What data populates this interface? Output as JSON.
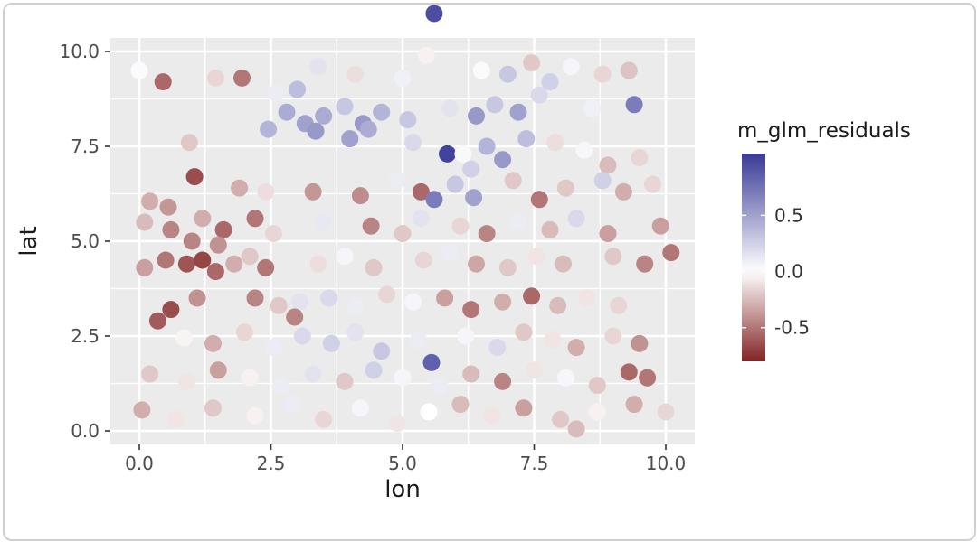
{
  "figure": {
    "background": "#ffffff",
    "border_color": "#cfcfcf"
  },
  "chart_data": {
    "type": "scatter",
    "title": "",
    "xlabel": "lon",
    "ylabel": "lat",
    "x_ticks": [
      0.0,
      2.5,
      5.0,
      7.5,
      10.0
    ],
    "x_tick_labels": [
      "0.0",
      "2.5",
      "5.0",
      "7.5",
      "10.0"
    ],
    "y_ticks": [
      0.0,
      2.5,
      5.0,
      7.5,
      10.0
    ],
    "y_tick_labels": [
      "0.0",
      "2.5",
      "5.0",
      "7.5",
      "10.0"
    ],
    "x_minor_ticks": [
      1.25,
      3.75,
      6.25,
      8.75
    ],
    "y_minor_ticks": [
      1.25,
      3.75,
      6.25,
      8.75
    ],
    "xlim": [
      -0.55,
      10.55
    ],
    "ylim": [
      -0.55,
      10.55
    ],
    "panel_background": "#EBEBEB",
    "grid_color": "#FFFFFF",
    "tick_color": "#333333",
    "tick_label_color": "#4d4d4d",
    "axis_title_color": "#1a1a1a",
    "legend": {
      "title": "m_glm_residuals",
      "tick_values": [
        0.5,
        0.0,
        -0.5
      ],
      "tick_labels": [
        "0.5",
        "0.0",
        "-0.5"
      ],
      "domain": [
        -0.8,
        1.05
      ],
      "low_color": "#832424",
      "mid_color": "#FFFFFF",
      "high_color": "#3A3A98"
    },
    "point_radius": 9.5,
    "points": [
      [
        5.6,
        11.0,
        0.95
      ],
      [
        0.0,
        9.5,
        0.02
      ],
      [
        0.45,
        9.2,
        -0.55
      ],
      [
        1.45,
        9.3,
        -0.15
      ],
      [
        1.95,
        9.3,
        -0.5
      ],
      [
        3.4,
        9.6,
        0.15
      ],
      [
        4.1,
        9.4,
        -0.12
      ],
      [
        5.0,
        9.3,
        0.08
      ],
      [
        5.45,
        9.9,
        -0.05
      ],
      [
        6.5,
        9.5,
        0.02
      ],
      [
        7.0,
        9.4,
        0.3
      ],
      [
        7.45,
        9.7,
        -0.2
      ],
      [
        7.8,
        9.2,
        0.25
      ],
      [
        8.2,
        9.6,
        0.05
      ],
      [
        8.8,
        9.4,
        -0.15
      ],
      [
        9.3,
        9.5,
        -0.22
      ],
      [
        2.6,
        8.9,
        0.1
      ],
      [
        3.0,
        9.0,
        0.35
      ],
      [
        2.8,
        8.4,
        0.45
      ],
      [
        3.15,
        8.1,
        0.5
      ],
      [
        3.5,
        8.3,
        0.45
      ],
      [
        3.9,
        8.55,
        0.3
      ],
      [
        4.25,
        8.1,
        0.55
      ],
      [
        4.6,
        8.4,
        0.4
      ],
      [
        5.1,
        8.2,
        0.3
      ],
      [
        5.9,
        8.5,
        0.15
      ],
      [
        6.4,
        8.3,
        0.55
      ],
      [
        6.75,
        8.6,
        0.3
      ],
      [
        7.2,
        8.4,
        0.5
      ],
      [
        7.6,
        8.85,
        0.2
      ],
      [
        8.6,
        8.5,
        0.08
      ],
      [
        9.4,
        8.6,
        0.7
      ],
      [
        2.45,
        7.95,
        0.4
      ],
      [
        0.95,
        7.6,
        -0.2
      ],
      [
        3.35,
        7.9,
        0.55
      ],
      [
        4.0,
        7.7,
        0.5
      ],
      [
        4.35,
        7.95,
        0.45
      ],
      [
        5.2,
        7.6,
        0.2
      ],
      [
        5.85,
        7.3,
        1.0
      ],
      [
        6.15,
        7.3,
        0.03
      ],
      [
        6.6,
        7.5,
        0.4
      ],
      [
        6.9,
        7.15,
        0.55
      ],
      [
        7.35,
        7.7,
        0.35
      ],
      [
        7.9,
        7.6,
        -0.12
      ],
      [
        8.45,
        7.4,
        0.04
      ],
      [
        8.9,
        7.0,
        -0.25
      ],
      [
        9.5,
        7.2,
        -0.15
      ],
      [
        6.3,
        6.9,
        0.25
      ],
      [
        1.05,
        6.7,
        -0.65
      ],
      [
        0.2,
        6.05,
        -0.3
      ],
      [
        0.55,
        5.9,
        -0.38
      ],
      [
        1.9,
        6.4,
        -0.3
      ],
      [
        2.4,
        6.3,
        -0.12
      ],
      [
        3.3,
        6.3,
        -0.38
      ],
      [
        4.2,
        6.2,
        -0.42
      ],
      [
        4.9,
        6.6,
        0.1
      ],
      [
        5.35,
        6.3,
        -0.55
      ],
      [
        5.6,
        6.1,
        0.7
      ],
      [
        6.0,
        6.5,
        0.3
      ],
      [
        6.35,
        6.15,
        0.5
      ],
      [
        7.1,
        6.6,
        -0.2
      ],
      [
        7.6,
        6.1,
        -0.5
      ],
      [
        8.1,
        6.4,
        -0.2
      ],
      [
        8.8,
        6.6,
        0.25
      ],
      [
        9.2,
        6.3,
        -0.3
      ],
      [
        9.75,
        6.5,
        -0.15
      ],
      [
        0.1,
        5.5,
        -0.25
      ],
      [
        0.6,
        5.3,
        -0.45
      ],
      [
        1.2,
        5.6,
        -0.3
      ],
      [
        1.6,
        5.3,
        -0.55
      ],
      [
        2.2,
        5.6,
        -0.5
      ],
      [
        2.55,
        5.2,
        -0.15
      ],
      [
        3.5,
        5.5,
        0.12
      ],
      [
        4.4,
        5.4,
        -0.45
      ],
      [
        5.0,
        5.2,
        -0.2
      ],
      [
        5.35,
        5.6,
        0.15
      ],
      [
        6.1,
        5.4,
        -0.15
      ],
      [
        6.6,
        5.2,
        -0.45
      ],
      [
        7.2,
        5.5,
        0.1
      ],
      [
        7.8,
        5.3,
        -0.25
      ],
      [
        8.3,
        5.6,
        0.2
      ],
      [
        8.9,
        5.2,
        -0.35
      ],
      [
        9.9,
        5.4,
        -0.35
      ],
      [
        10.1,
        4.7,
        -0.5
      ],
      [
        0.1,
        4.3,
        -0.35
      ],
      [
        0.5,
        4.5,
        -0.5
      ],
      [
        0.9,
        4.4,
        -0.62
      ],
      [
        1.2,
        4.5,
        -0.68
      ],
      [
        1.45,
        4.2,
        -0.55
      ],
      [
        1.8,
        4.4,
        -0.3
      ],
      [
        2.1,
        4.6,
        -0.2
      ],
      [
        1.0,
        5.0,
        -0.45
      ],
      [
        1.5,
        4.9,
        -0.4
      ],
      [
        2.4,
        4.3,
        -0.5
      ],
      [
        3.4,
        4.4,
        -0.12
      ],
      [
        3.9,
        4.6,
        0.05
      ],
      [
        4.45,
        4.3,
        -0.2
      ],
      [
        5.4,
        4.5,
        -0.15
      ],
      [
        5.9,
        4.7,
        0.1
      ],
      [
        6.4,
        4.4,
        -0.32
      ],
      [
        7.0,
        4.3,
        -0.2
      ],
      [
        7.55,
        4.6,
        -0.1
      ],
      [
        8.05,
        4.4,
        -0.25
      ],
      [
        9.0,
        4.6,
        -0.2
      ],
      [
        9.6,
        4.4,
        -0.45
      ],
      [
        0.6,
        3.2,
        -0.65
      ],
      [
        1.1,
        3.5,
        -0.4
      ],
      [
        2.2,
        3.5,
        -0.45
      ],
      [
        2.65,
        3.3,
        -0.2
      ],
      [
        3.05,
        3.4,
        0.15
      ],
      [
        3.6,
        3.5,
        0.2
      ],
      [
        4.1,
        3.3,
        0.1
      ],
      [
        4.7,
        3.6,
        -0.15
      ],
      [
        5.2,
        3.4,
        0.05
      ],
      [
        5.8,
        3.5,
        -0.35
      ],
      [
        6.3,
        3.2,
        -0.5
      ],
      [
        6.9,
        3.4,
        -0.3
      ],
      [
        7.45,
        3.55,
        -0.55
      ],
      [
        7.95,
        3.3,
        -0.25
      ],
      [
        8.5,
        3.5,
        -0.1
      ],
      [
        9.1,
        3.3,
        -0.15
      ],
      [
        2.95,
        3.0,
        -0.45
      ],
      [
        0.35,
        2.9,
        -0.6
      ],
      [
        0.85,
        2.45,
        -0.04
      ],
      [
        1.4,
        2.3,
        -0.3
      ],
      [
        2.0,
        2.6,
        -0.15
      ],
      [
        2.55,
        2.2,
        0.1
      ],
      [
        3.1,
        2.5,
        0.2
      ],
      [
        3.65,
        2.3,
        0.25
      ],
      [
        4.1,
        2.6,
        0.15
      ],
      [
        4.6,
        2.1,
        0.3
      ],
      [
        5.3,
        2.4,
        0.1
      ],
      [
        5.55,
        1.8,
        0.85
      ],
      [
        6.2,
        2.5,
        0.05
      ],
      [
        6.8,
        2.2,
        0.2
      ],
      [
        7.3,
        2.6,
        -0.2
      ],
      [
        7.85,
        2.4,
        -0.1
      ],
      [
        8.3,
        2.2,
        -0.3
      ],
      [
        9.0,
        2.5,
        -0.15
      ],
      [
        9.5,
        2.3,
        -0.4
      ],
      [
        0.2,
        1.5,
        -0.2
      ],
      [
        0.9,
        1.3,
        -0.1
      ],
      [
        1.5,
        1.6,
        -0.35
      ],
      [
        2.1,
        1.4,
        -0.05
      ],
      [
        2.7,
        1.2,
        0.1
      ],
      [
        3.3,
        1.5,
        0.15
      ],
      [
        3.9,
        1.3,
        -0.2
      ],
      [
        4.45,
        1.6,
        0.25
      ],
      [
        5.0,
        1.4,
        0.05
      ],
      [
        5.7,
        1.2,
        0.1
      ],
      [
        6.3,
        1.5,
        -0.25
      ],
      [
        6.9,
        1.3,
        -0.45
      ],
      [
        7.5,
        1.6,
        -0.1
      ],
      [
        8.1,
        1.4,
        0.04
      ],
      [
        8.7,
        1.2,
        -0.2
      ],
      [
        9.3,
        1.55,
        -0.55
      ],
      [
        9.65,
        1.4,
        -0.5
      ],
      [
        0.05,
        0.55,
        -0.3
      ],
      [
        0.7,
        0.3,
        -0.1
      ],
      [
        1.4,
        0.6,
        -0.2
      ],
      [
        2.2,
        0.4,
        -0.05
      ],
      [
        2.9,
        0.7,
        0.1
      ],
      [
        3.5,
        0.3,
        -0.15
      ],
      [
        4.2,
        0.6,
        0.05
      ],
      [
        4.9,
        0.2,
        -0.1
      ],
      [
        5.5,
        0.5,
        0.0
      ],
      [
        6.1,
        0.7,
        -0.25
      ],
      [
        6.7,
        0.4,
        -0.1
      ],
      [
        7.3,
        0.6,
        -0.35
      ],
      [
        8.0,
        0.3,
        -0.2
      ],
      [
        8.3,
        0.05,
        -0.25
      ],
      [
        8.7,
        0.5,
        -0.05
      ],
      [
        9.4,
        0.7,
        -0.3
      ],
      [
        10.0,
        0.5,
        -0.15
      ]
    ]
  }
}
